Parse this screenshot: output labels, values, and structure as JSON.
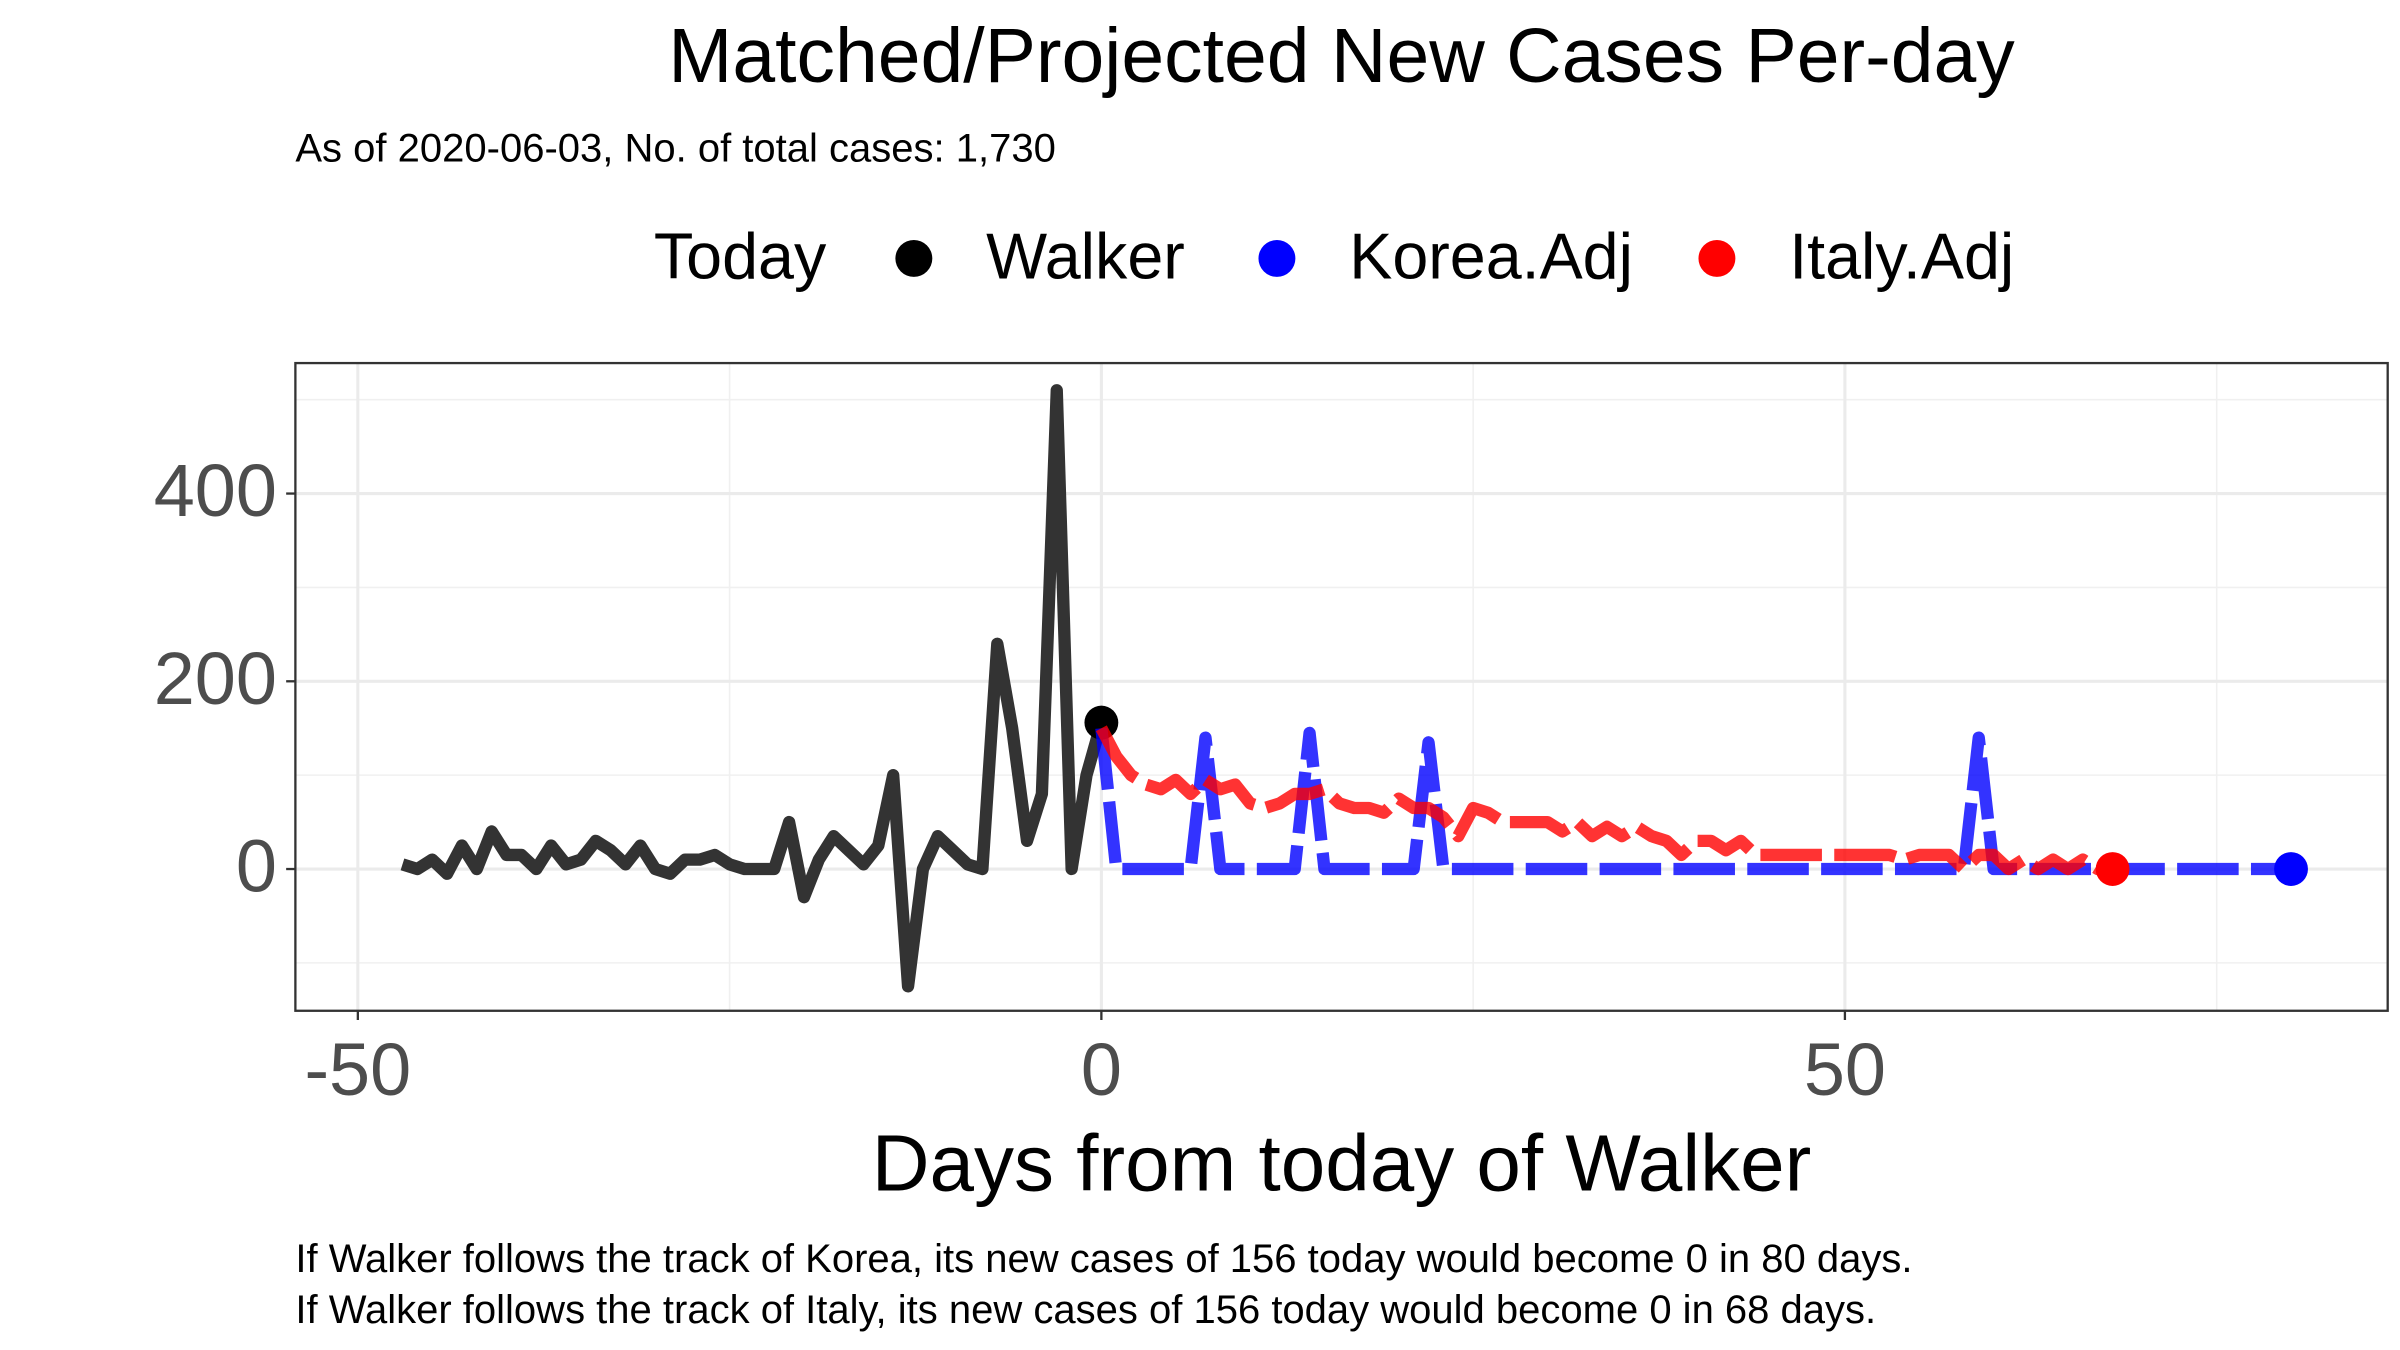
{
  "chart_data": {
    "type": "line",
    "title": "Matched/Projected New Cases Per-day",
    "subtitle": "As of 2020-06-03, No. of total cases: 1,730",
    "legend_title": "Today",
    "x_label": "Days from today of Walker",
    "notes": [
      "If Walker follows the track of Korea, its new cases of 156 today would become 0 in 80 days.",
      "If Walker follows the track of Italy, its new cases of 156 today would become 0 in 68 days."
    ],
    "xlim": [
      -54.2,
      86.5
    ],
    "ylim": [
      -151,
      539
    ],
    "xticks": [
      -50,
      0,
      50
    ],
    "yticks": [
      0,
      200,
      400
    ],
    "x_minor_grid": [
      -25,
      25,
      75
    ],
    "y_minor_grid": [
      -100,
      100,
      300,
      500
    ],
    "grid": true,
    "series": [
      {
        "name": "Walker",
        "color": "#333333",
        "x": [
          -47,
          -46,
          -45,
          -44,
          -43,
          -42,
          -41,
          -40,
          -39,
          -38,
          -37,
          -36,
          -35,
          -34,
          -33,
          -32,
          -31,
          -30,
          -29,
          -28,
          -27,
          -26,
          -25,
          -24,
          -23,
          -22,
          -21,
          -20,
          -19,
          -18,
          -17,
          -16,
          -15,
          -14,
          -13,
          -12,
          -11,
          -10,
          -9,
          -8,
          -7,
          -6,
          -5,
          -4,
          -3,
          -2,
          -1,
          0
        ],
        "values": [
          5,
          0,
          10,
          -5,
          25,
          0,
          40,
          15,
          15,
          0,
          25,
          5,
          10,
          30,
          20,
          5,
          25,
          0,
          -5,
          10,
          10,
          15,
          5,
          0,
          0,
          0,
          50,
          -30,
          10,
          35,
          20,
          5,
          25,
          100,
          -125,
          0,
          35,
          20,
          5,
          0,
          240,
          150,
          30,
          80,
          510,
          0,
          100,
          156
        ]
      },
      {
        "name": "Korea.Adj",
        "color": "#0000ff",
        "x": [
          0,
          1,
          2,
          3,
          4,
          5,
          6,
          7,
          8,
          9,
          10,
          11,
          12,
          13,
          14,
          15,
          16,
          17,
          18,
          19,
          20,
          21,
          22,
          23,
          24,
          25,
          26,
          27,
          28,
          29,
          30,
          31,
          32,
          33,
          34,
          35,
          36,
          37,
          38,
          39,
          40,
          41,
          42,
          43,
          44,
          45,
          46,
          47,
          48,
          49,
          50,
          51,
          52,
          53,
          54,
          55,
          56,
          57,
          58,
          59,
          60,
          61,
          62,
          63,
          64,
          65,
          66,
          67,
          68,
          69,
          70,
          71,
          72,
          73,
          74,
          75,
          76,
          77,
          78,
          79,
          80
        ],
        "values": [
          150,
          0,
          0,
          0,
          0,
          0,
          0,
          140,
          0,
          0,
          0,
          0,
          0,
          0,
          145,
          0,
          0,
          0,
          0,
          0,
          0,
          0,
          135,
          0,
          0,
          0,
          0,
          0,
          0,
          0,
          0,
          0,
          0,
          0,
          0,
          0,
          0,
          0,
          0,
          0,
          0,
          0,
          0,
          0,
          0,
          0,
          0,
          0,
          0,
          0,
          0,
          0,
          0,
          0,
          0,
          0,
          0,
          0,
          0,
          140,
          0,
          0,
          0,
          0,
          0,
          0,
          0,
          0,
          0,
          0,
          0,
          0,
          0,
          0,
          0,
          0,
          0,
          0,
          0,
          0,
          0
        ]
      },
      {
        "name": "Italy.Adj",
        "color": "#ff0000",
        "x": [
          0,
          1,
          2,
          3,
          4,
          5,
          6,
          7,
          8,
          9,
          10,
          11,
          12,
          13,
          14,
          15,
          16,
          17,
          18,
          19,
          20,
          21,
          22,
          23,
          24,
          25,
          26,
          27,
          28,
          29,
          30,
          31,
          32,
          33,
          34,
          35,
          36,
          37,
          38,
          39,
          40,
          41,
          42,
          43,
          44,
          45,
          46,
          47,
          48,
          49,
          50,
          51,
          52,
          53,
          54,
          55,
          56,
          57,
          58,
          59,
          60,
          61,
          62,
          63,
          64,
          65,
          66,
          67,
          68
        ],
        "values": [
          150,
          120,
          100,
          90,
          85,
          95,
          80,
          95,
          85,
          90,
          70,
          65,
          70,
          80,
          80,
          85,
          70,
          65,
          65,
          60,
          75,
          65,
          65,
          55,
          35,
          65,
          60,
          50,
          50,
          50,
          50,
          40,
          50,
          35,
          45,
          35,
          45,
          35,
          30,
          15,
          30,
          30,
          20,
          30,
          15,
          15,
          15,
          15,
          15,
          15,
          15,
          15,
          15,
          15,
          10,
          15,
          15,
          15,
          0,
          15,
          15,
          0,
          10,
          0,
          10,
          0,
          10,
          0,
          0
        ]
      }
    ]
  }
}
